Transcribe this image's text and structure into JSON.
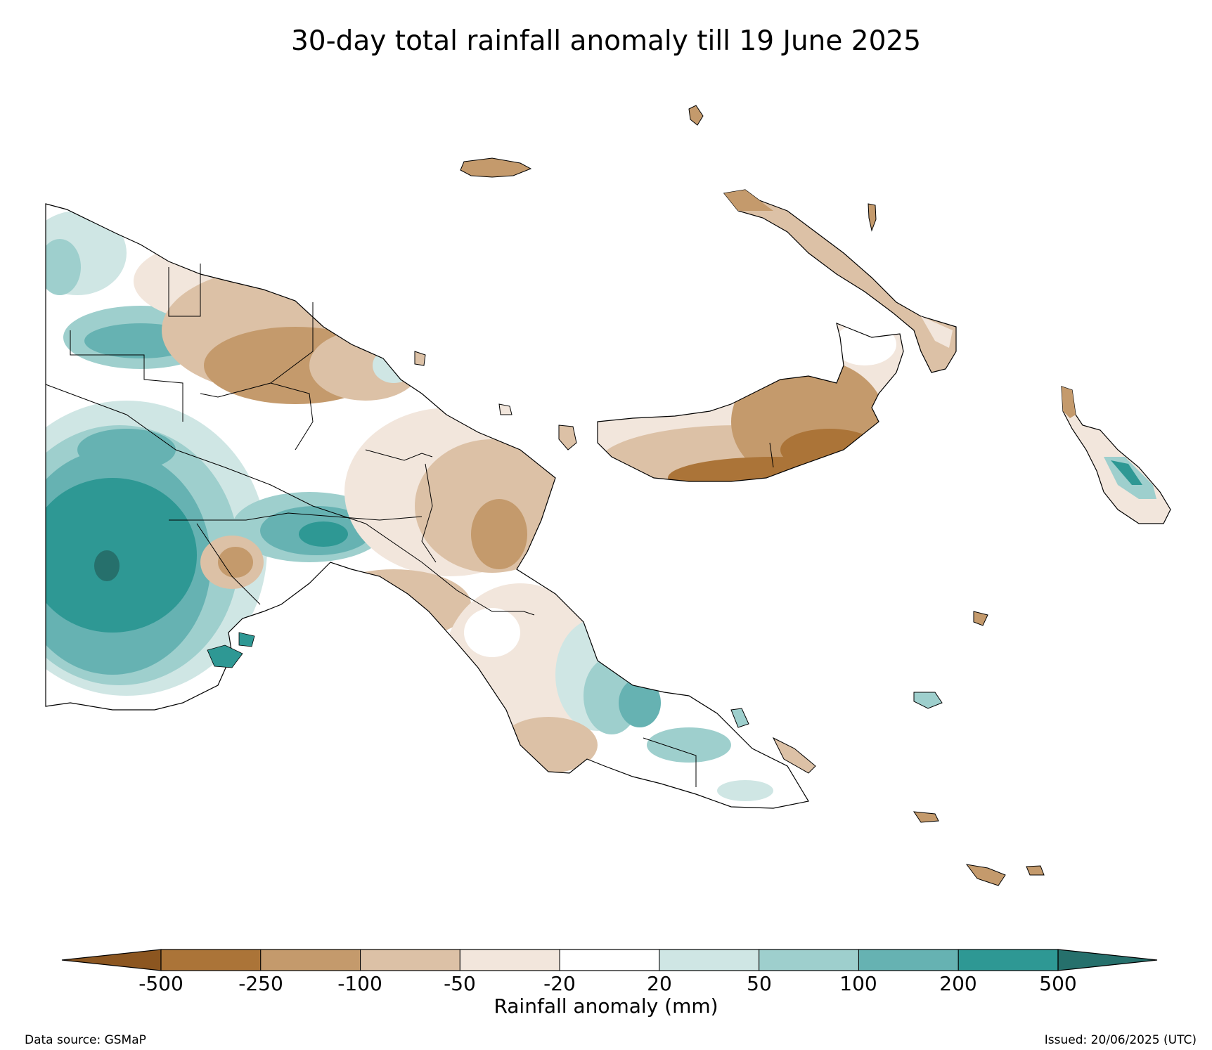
{
  "title": "30-day total rainfall anomaly till 19 June 2025",
  "colorbar": {
    "label": "Rainfall anomaly (mm)",
    "ticks": [
      "-500",
      "-250",
      "-100",
      "-50",
      "-20",
      "20",
      "50",
      "100",
      "200",
      "500"
    ],
    "bins": [
      {
        "range": "< -500",
        "color": "#8c5620"
      },
      {
        "range": "-500 to -250",
        "color": "#ab7438"
      },
      {
        "range": "-250 to -100",
        "color": "#c49a6c"
      },
      {
        "range": "-100 to -50",
        "color": "#dcc1a6"
      },
      {
        "range": "-50 to -20",
        "color": "#f2e6dc"
      },
      {
        "range": "-20 to 20",
        "color": "#ffffff"
      },
      {
        "range": "20 to 50",
        "color": "#cfe6e4"
      },
      {
        "range": "50 to 100",
        "color": "#9ecfcd"
      },
      {
        "range": "100 to 200",
        "color": "#66b2b2"
      },
      {
        "range": "200 to 500",
        "color": "#2e9894"
      },
      {
        "range": "> 500",
        "color": "#26706c"
      }
    ]
  },
  "footer": {
    "source": "Data source: GSMaP",
    "issued": "Issued: 20/06/2025 (UTC)"
  }
}
